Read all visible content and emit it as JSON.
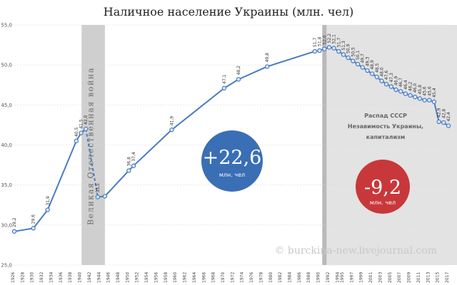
{
  "chart_data": {
    "type": "line",
    "title": "Наличное население Украины (млн. чел)",
    "ylim": [
      25,
      55
    ],
    "yticks": [
      "25,0",
      "30,0",
      "35,0",
      "40,0",
      "45,0",
      "50,0",
      "55,0"
    ],
    "ytick_values": [
      25,
      30,
      35,
      40,
      45,
      50,
      55
    ],
    "xlim": [
      1926,
      2017
    ],
    "xticks": [
      "1926",
      "1928",
      "1930",
      "1932",
      "1934",
      "1936",
      "1938",
      "1940",
      "1942",
      "1944",
      "1946",
      "1948",
      "1950",
      "1952",
      "1954",
      "1956",
      "1958",
      "1960",
      "1962",
      "1964",
      "1966",
      "1968",
      "1970",
      "1972",
      "1974",
      "1976",
      "1978",
      "1980",
      "1982",
      "1984",
      "1986",
      "1988",
      "1990",
      "1992",
      "1994",
      "1995",
      "1997",
      "1999",
      "2001",
      "2003",
      "2005",
      "2007",
      "2009",
      "2011",
      "2013",
      "2015",
      "2017"
    ],
    "xtick_values": [
      1926,
      1928,
      1930,
      1932,
      1934,
      1936,
      1938,
      1940,
      1942,
      1944,
      1946,
      1948,
      1950,
      1952,
      1954,
      1956,
      1958,
      1960,
      1962,
      1964,
      1966,
      1968,
      1970,
      1972,
      1974,
      1976,
      1978,
      1980,
      1982,
      1984,
      1986,
      1988,
      1990,
      1992,
      1994,
      1995,
      1997,
      1999,
      2001,
      2003,
      2005,
      2007,
      2009,
      2011,
      2013,
      2015,
      2017
    ],
    "series": [
      {
        "x": [
          1926,
          1930,
          1933,
          1939,
          1940,
          1941,
          1943.5,
          1945,
          1950,
          1951,
          1959,
          1970,
          1973,
          1979,
          1989,
          1990,
          1991,
          1992,
          1993,
          1994,
          1995,
          1996,
          1997,
          1998,
          1999,
          2000,
          2001,
          2002,
          2003,
          2004,
          2005,
          2006,
          2007,
          2008,
          2009,
          2010,
          2011,
          2012,
          2013,
          2014,
          2015,
          2016,
          2017
        ],
        "values": [
          29.2,
          29.6,
          31.9,
          40.5,
          41.5,
          42.0,
          33.5,
          33.6,
          36.8,
          37.4,
          41.9,
          47.1,
          48.2,
          49.8,
          51.7,
          51.8,
          52.0,
          52.2,
          52.1,
          51.7,
          51.3,
          50.9,
          50.5,
          50.1,
          49.7,
          49.3,
          48.9,
          48.5,
          48.0,
          47.6,
          47.3,
          46.9,
          46.7,
          46.4,
          46.2,
          46.0,
          45.8,
          45.6,
          45.6,
          45.4,
          42.9,
          42.8,
          42.4
        ],
        "labels": [
          "29,2",
          "29,6",
          "31,9",
          "40,5",
          "41,5",
          "42,0",
          "33,5",
          "",
          "36,8",
          "37,4",
          "41,9",
          "47,1",
          "48,2",
          "49,8",
          "51,7",
          "51,8",
          "52,0",
          "52,2",
          "52,1",
          "51,7",
          "51,3",
          "50,9",
          "50,5",
          "50,1",
          "49,7",
          "49,3",
          "48,9",
          "48,5",
          "48,0",
          "47,6",
          "47,3",
          "46,9",
          "46,7",
          "46,4",
          "46,2",
          "46,0",
          "45,8",
          "45,6",
          "45,6",
          "45,4",
          "42,9",
          "42,8",
          "42,4"
        ]
      }
    ],
    "war_period": {
      "x_start": 1941,
      "x_end": 1945,
      "label": "Великая Отечественная война"
    },
    "post_ussr_period": {
      "x_start": 1991,
      "x_end": 2017
    },
    "war_segment_dashed": [
      1941,
      1943.5
    ],
    "annotations": {
      "ussr_note": [
        "Распад СССР",
        "Незавимость Украины,",
        "капитализм"
      ],
      "growth_bubble": {
        "value": "+22,6",
        "unit": "млн. чел",
        "color": "#3a6fb5"
      },
      "decline_bubble": {
        "value": "-9,2",
        "unit": "млн. чел",
        "color": "#c8383a"
      },
      "watermark": "© burckina-new.livejournal.com"
    },
    "colors": {
      "line": "#4a7cc0",
      "marker_fill": "#dbe8f6",
      "war_band": "#cfcfcf",
      "post_band": "#e3e3e3",
      "grid": "#dcdcdc"
    }
  }
}
